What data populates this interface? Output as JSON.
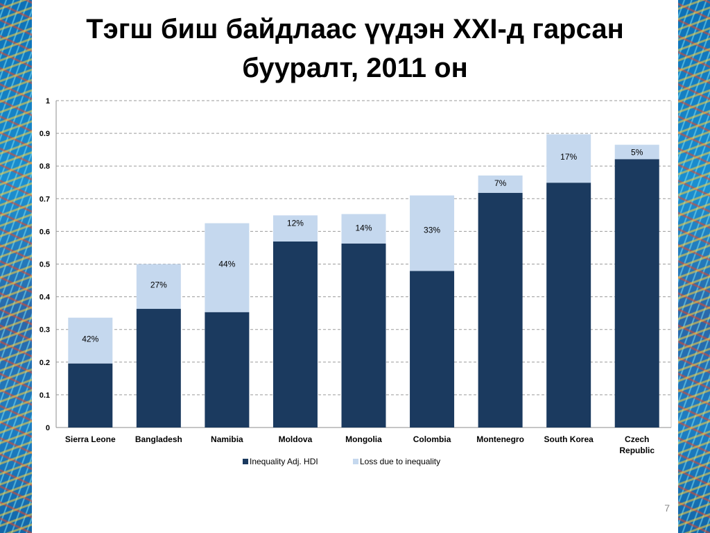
{
  "slide": {
    "title_line1": "Тэгш биш байдлаас үүдэн XXI-д гарсан",
    "title_line2": "бууралт, 2011 он",
    "page_number": "7"
  },
  "colors": {
    "inequality_adj_hdi": "#1b3a5f",
    "loss_due_to_inequality": "#c5d8ee",
    "gridline": "#9a9a9a",
    "deco_blue": "#1b8fd0"
  },
  "chart_data": {
    "type": "bar",
    "stacked": true,
    "categories": [
      "Sierra Leone",
      "Bangladesh",
      "Namibia",
      "Moldova",
      "Mongolia",
      "Colombia",
      "Montenegro",
      "South Korea",
      "Czech Republic"
    ],
    "category_label_lines": [
      [
        "Sierra Leone"
      ],
      [
        "Bangladesh"
      ],
      [
        "Namibia"
      ],
      [
        "Moldova"
      ],
      [
        "Mongolia"
      ],
      [
        "Colombia"
      ],
      [
        "Montenegro"
      ],
      [
        "South Korea"
      ],
      [
        "Czech",
        "Republic"
      ]
    ],
    "series": [
      {
        "name": "Inequality Adj. HDI",
        "values": [
          0.196,
          0.363,
          0.353,
          0.569,
          0.563,
          0.479,
          0.718,
          0.749,
          0.821
        ]
      },
      {
        "name": "Loss due to inequality",
        "values": [
          0.14,
          0.137,
          0.272,
          0.08,
          0.09,
          0.231,
          0.053,
          0.148,
          0.044
        ]
      }
    ],
    "loss_labels": [
      "42%",
      "27%",
      "44%",
      "12%",
      "14%",
      "33%",
      "7%",
      "17%",
      "5%"
    ],
    "ylim": [
      0,
      1
    ],
    "yticks": [
      "0",
      "0.1",
      "0.2",
      "0.3",
      "0.4",
      "0.5",
      "0.6",
      "0.7",
      "0.8",
      "0.9",
      "1"
    ],
    "grid": true,
    "legend_position": "bottom",
    "title": "",
    "xlabel": "",
    "ylabel": ""
  }
}
